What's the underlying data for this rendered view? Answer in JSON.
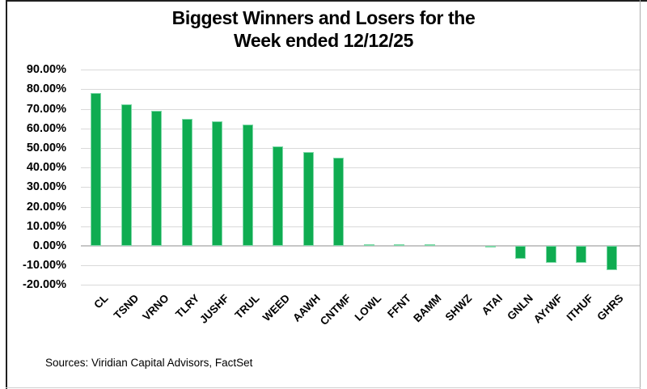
{
  "header": {
    "title_line1": "Biggest Winners and Losers for the",
    "title_line2": "Week ended 12/12/25"
  },
  "footer": {
    "source": "Sources: Viridian Capital Advisors, FactSet"
  },
  "chart_data": {
    "type": "bar",
    "title": "Biggest Winners and Losers for the Week ended 12/12/25",
    "categories": [
      "CL",
      "TSND",
      "VRNO",
      "TLRY",
      "JUSHF",
      "TRUL",
      "WEED",
      "AAWH",
      "CNTMF",
      "LOWL",
      "FFNT",
      "BAMM",
      "SHWZ",
      "ATAI",
      "GNLN",
      "AYrWF",
      "ITHUF",
      "GHRS"
    ],
    "values": [
      78.0,
      72.5,
      69.0,
      65.0,
      63.5,
      62.0,
      51.0,
      48.0,
      45.0,
      0.8,
      0.8,
      0.9,
      0.0,
      -1.0,
      -6.5,
      -8.7,
      -8.5,
      -12.4
    ],
    "value_unit": "percent",
    "xlabel": "",
    "ylabel": "",
    "y_axis": {
      "min": -20,
      "max": 90,
      "tick_step": 10,
      "tick_values": [
        90,
        80,
        70,
        60,
        50,
        40,
        30,
        20,
        10,
        0,
        -10,
        -20
      ],
      "tick_labels": [
        "90.00%",
        "80.00%",
        "70.00%",
        "60.00%",
        "50.00%",
        "40.00%",
        "30.00%",
        "20.00%",
        "10.00%",
        "0.00%",
        "-10.00%",
        "-20.00%"
      ]
    },
    "grid": true,
    "legend": false,
    "bar_color": "#0fac51",
    "bar_border_color": "#7ed8a8",
    "gridline_color": "#d9d9d9",
    "zero_line_color": "#c6c6c6",
    "source": "Sources: Viridian Capital Advisors, FactSet"
  }
}
